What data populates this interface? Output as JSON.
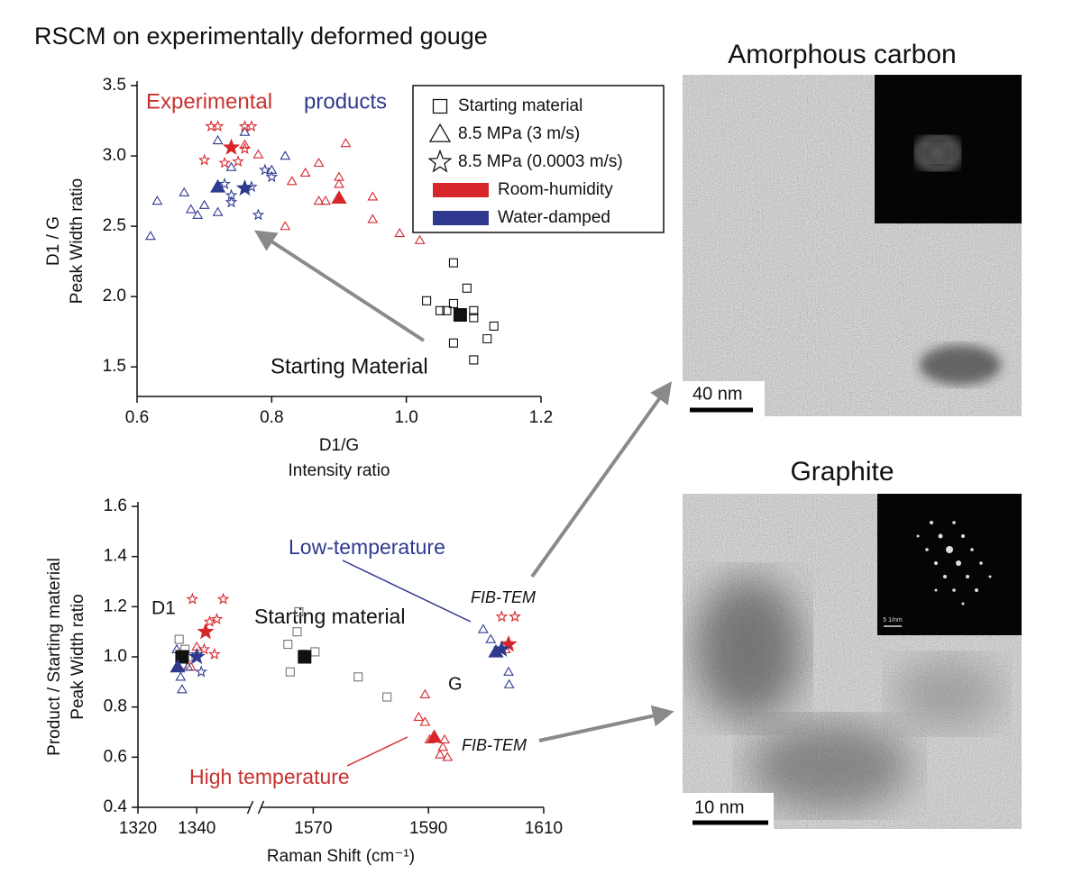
{
  "figure_title": "RSCM on experimentally deformed gouge",
  "panels": [
    {
      "title": "Amorphous carbon",
      "scale_bar": "40 nm"
    },
    {
      "title": "Graphite",
      "scale_bar": "10 nm",
      "inset_scale": "5 1/nm"
    }
  ],
  "chart_data": [
    {
      "type": "scatter",
      "xlabel": [
        "D1/G",
        "Intensity ratio"
      ],
      "ylabel": [
        "D1 / G",
        "Peak Width ratio"
      ],
      "xlim": [
        0.6,
        1.2
      ],
      "xticks": [
        0.6,
        0.8,
        {
          "value": 1,
          "label": "1.0"
        },
        1.2
      ],
      "ylim": [
        1.29,
        3.5
      ],
      "yticks": [
        1.5,
        {
          "value": 2,
          "label": "2.0"
        },
        2.5,
        {
          "value": 3,
          "label": "3.0"
        },
        3.5
      ],
      "annotations": [
        "Experimental",
        "products",
        "Starting Material"
      ],
      "legend": [
        {
          "label": "Starting material",
          "marker": "square"
        },
        {
          "label": "8.5 MPa (3 m/s)",
          "marker": "triangle"
        },
        {
          "label": "8.5 MPa (0.0003 m/s)",
          "marker": "star"
        },
        {
          "label": "Room-humidity",
          "color": "#d7262b"
        },
        {
          "label": "Water-damped",
          "color": "#2f3a8f"
        }
      ],
      "series": [
        {
          "marker": "square",
          "color": "#111111",
          "filled": false,
          "x": [
            1.07,
            1.09,
            1.03,
            1.05,
            1.06,
            1.1,
            1.1,
            1.13,
            1.07,
            1.12,
            1.1,
            1.07
          ],
          "y": [
            2.24,
            2.06,
            1.97,
            1.9,
            1.9,
            1.9,
            1.85,
            1.79,
            1.67,
            1.7,
            1.55,
            1.95
          ]
        },
        {
          "marker": "triangle",
          "color": "#d7262b",
          "filled": false,
          "x": [
            0.91,
            0.87,
            0.85,
            0.83,
            0.9,
            0.9,
            0.87,
            0.88,
            0.95,
            0.95,
            0.99,
            1.02,
            0.82,
            0.78,
            0.76
          ],
          "y": [
            3.09,
            2.95,
            2.88,
            2.82,
            2.85,
            2.8,
            2.68,
            2.68,
            2.71,
            2.55,
            2.45,
            2.4,
            2.5,
            3.01,
            3.08
          ]
        },
        {
          "marker": "triangle",
          "color": "#2f3a8f",
          "filled": false,
          "x": [
            0.62,
            0.63,
            0.67,
            0.68,
            0.69,
            0.7,
            0.72,
            0.72,
            0.76,
            0.82,
            0.8,
            0.74
          ],
          "y": [
            2.43,
            2.68,
            2.74,
            2.62,
            2.58,
            2.65,
            2.6,
            3.11,
            3.17,
            3.0,
            2.9,
            2.92
          ]
        },
        {
          "marker": "star",
          "color": "#d7262b",
          "filled": false,
          "x": [
            0.71,
            0.72,
            0.76,
            0.77,
            0.7,
            0.73,
            0.75,
            0.76
          ],
          "y": [
            3.21,
            3.21,
            3.21,
            3.21,
            2.97,
            2.95,
            2.96,
            3.05
          ]
        },
        {
          "marker": "star",
          "color": "#2f3a8f",
          "filled": false,
          "x": [
            0.73,
            0.74,
            0.77,
            0.79,
            0.78,
            0.8,
            0.74
          ],
          "y": [
            2.8,
            2.67,
            2.78,
            2.9,
            2.58,
            2.85,
            2.72
          ]
        },
        {
          "marker": "square",
          "color": "#111111",
          "filled": true,
          "x": [
            1.08
          ],
          "y": [
            1.87
          ]
        },
        {
          "marker": "triangle",
          "color": "#d7262b",
          "filled": true,
          "x": [
            0.9
          ],
          "y": [
            2.7
          ]
        },
        {
          "marker": "triangle",
          "color": "#2f3a8f",
          "filled": true,
          "x": [
            0.72
          ],
          "y": [
            2.78
          ]
        },
        {
          "marker": "star",
          "color": "#d7262b",
          "filled": true,
          "x": [
            0.74
          ],
          "y": [
            3.06
          ]
        },
        {
          "marker": "star",
          "color": "#2f3a8f",
          "filled": true,
          "x": [
            0.76
          ],
          "y": [
            2.77
          ]
        }
      ]
    },
    {
      "type": "scatter",
      "xlabel": [
        "Raman Shift (cm⁻¹)"
      ],
      "ylabel": [
        "Product / Starting material",
        "Peak Width ratio"
      ],
      "xlim": [
        1320,
        1610
      ],
      "xbreak": [
        1360,
        1560
      ],
      "xticks": [
        1320,
        1340,
        1570,
        1590,
        1610
      ],
      "ylim": [
        0.4,
        1.6
      ],
      "yticks": [
        0.4,
        0.6,
        0.8,
        {
          "value": 1,
          "label": "1.0"
        },
        1.2,
        1.4,
        1.6
      ],
      "annotations": [
        "D1",
        "Starting material",
        "G",
        "Low-temperature",
        "High temperature",
        "FIB-TEM",
        "FIB-TEM"
      ],
      "series": [
        {
          "marker": "square",
          "color": "#777777",
          "filled": false,
          "x": [
            1334,
            1336,
            1335,
            1337,
            1567.5,
            1567.2,
            1565.6,
            1568.3,
            1566,
            1570.3,
            1577.8,
            1582.8
          ],
          "y": [
            1.07,
            1.03,
            0.97,
            1.0,
            1.18,
            1.1,
            1.05,
            1.01,
            0.94,
            1.02,
            0.92,
            0.84
          ]
        },
        {
          "marker": "triangle",
          "color": "#d7262b",
          "filled": false,
          "x": [
            1338,
            1340,
            1589.4,
            1588.3,
            1589.4,
            1590.2,
            1592.5,
            1592,
            1593.3,
            1592.8,
            1603.4
          ],
          "y": [
            0.96,
            1.04,
            0.85,
            0.76,
            0.74,
            0.67,
            0.64,
            0.61,
            0.6,
            0.67,
            1.03
          ]
        },
        {
          "marker": "triangle",
          "color": "#2f3a8f",
          "filled": false,
          "x": [
            1333.2,
            1334.5,
            1335,
            1337,
            1599.5,
            1600.8,
            1603.9,
            1604
          ],
          "y": [
            1.03,
            0.92,
            0.87,
            0.96,
            1.11,
            1.07,
            0.94,
            0.89
          ]
        },
        {
          "marker": "star",
          "color": "#d7262b",
          "filled": false,
          "x": [
            1338.5,
            1349,
            1344.4,
            1346.8,
            1342.5,
            1346,
            1602.7,
            1605
          ],
          "y": [
            1.23,
            1.23,
            1.14,
            1.15,
            1.03,
            1.01,
            1.16,
            1.16
          ]
        },
        {
          "marker": "star",
          "color": "#2f3a8f",
          "filled": false,
          "x": [
            1340,
            1341.5
          ],
          "y": [
            1.01,
            0.94
          ]
        },
        {
          "marker": "square",
          "color": "#111111",
          "filled": true,
          "x": [
            1335,
            1568.5
          ],
          "y": [
            1.0,
            1.0
          ]
        },
        {
          "marker": "triangle",
          "color": "#d7262b",
          "filled": true,
          "x": [
            1591
          ],
          "y": [
            0.68
          ]
        },
        {
          "marker": "triangle",
          "color": "#2f3a8f",
          "filled": true,
          "x": [
            1333.5,
            1601.7
          ],
          "y": [
            0.96,
            1.02
          ]
        },
        {
          "marker": "star",
          "color": "#d7262b",
          "filled": true,
          "x": [
            1343,
            1603.9
          ],
          "y": [
            1.1,
            1.05
          ]
        },
        {
          "marker": "star",
          "color": "#2f3a8f",
          "filled": true,
          "x": [
            1340,
            1602.7
          ],
          "y": [
            1.0,
            1.03
          ]
        }
      ]
    }
  ]
}
